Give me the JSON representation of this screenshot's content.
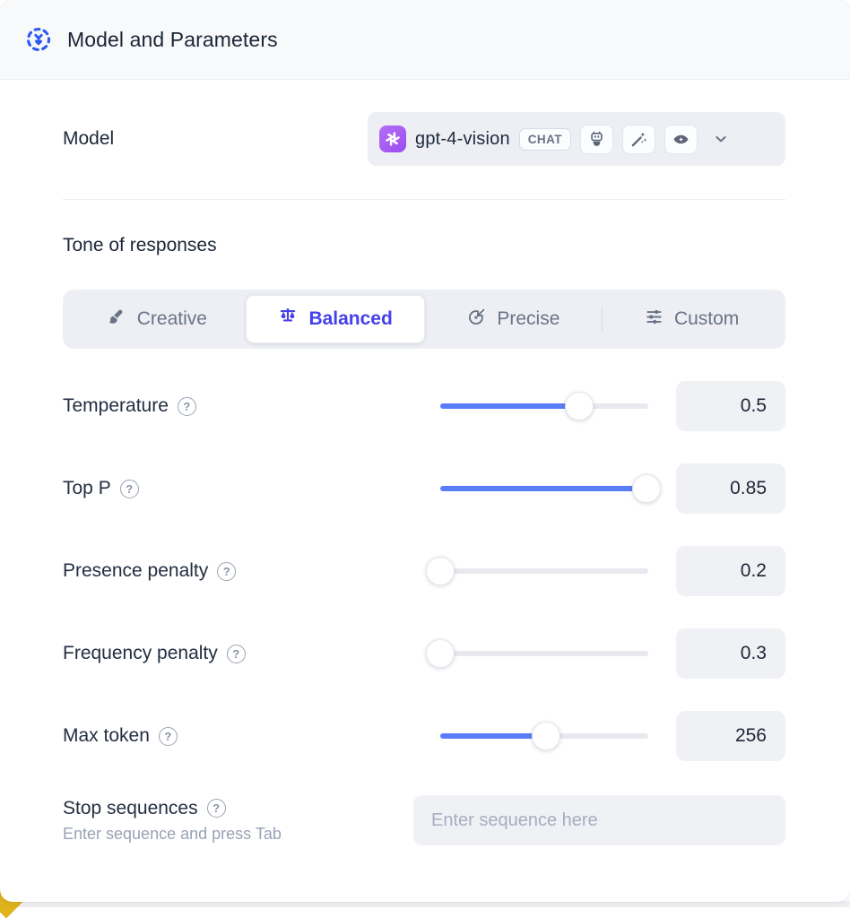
{
  "header": {
    "title": "Model and Parameters",
    "icon": "model-parameters-icon",
    "icon_color": "#2d5bf2"
  },
  "model": {
    "label": "Model",
    "selected_model": "gpt-4-vision",
    "provider_icon": "openai-logo-icon",
    "type_badge": "CHAT",
    "capability_icons": [
      "robot-icon",
      "magic-wand-icon",
      "vision-eye-icon"
    ],
    "provider_color": "#a55bf3"
  },
  "tone": {
    "heading": "Tone of responses",
    "selected": "Balanced",
    "selected_color": "#4540ea",
    "options": [
      {
        "label": "Creative",
        "icon": "paintbrush-icon",
        "selected": false
      },
      {
        "label": "Balanced",
        "icon": "balance-scale-icon",
        "selected": true
      },
      {
        "label": "Precise",
        "icon": "target-arrow-icon",
        "selected": false
      },
      {
        "label": "Custom",
        "icon": "sliders-icon",
        "selected": false
      }
    ]
  },
  "parameters": [
    {
      "label": "Temperature",
      "value": "0.5",
      "slider_percent": 67
    },
    {
      "label": "Top P",
      "value": "0.85",
      "slider_percent": 99
    },
    {
      "label": "Presence penalty",
      "value": "0.2",
      "slider_percent": 0
    },
    {
      "label": "Frequency penalty",
      "value": "0.3",
      "slider_percent": 0
    },
    {
      "label": "Max token",
      "value": "256",
      "slider_percent": 51
    }
  ],
  "stop_sequences": {
    "label": "Stop sequences",
    "hint": "Enter sequence and press Tab",
    "placeholder": "Enter sequence here"
  },
  "icons": {
    "help_glyph": "?"
  },
  "colors": {
    "slider_accent": "#5b7df8",
    "control_background": "#edeff5",
    "corner_accent": "#dfb31c"
  }
}
